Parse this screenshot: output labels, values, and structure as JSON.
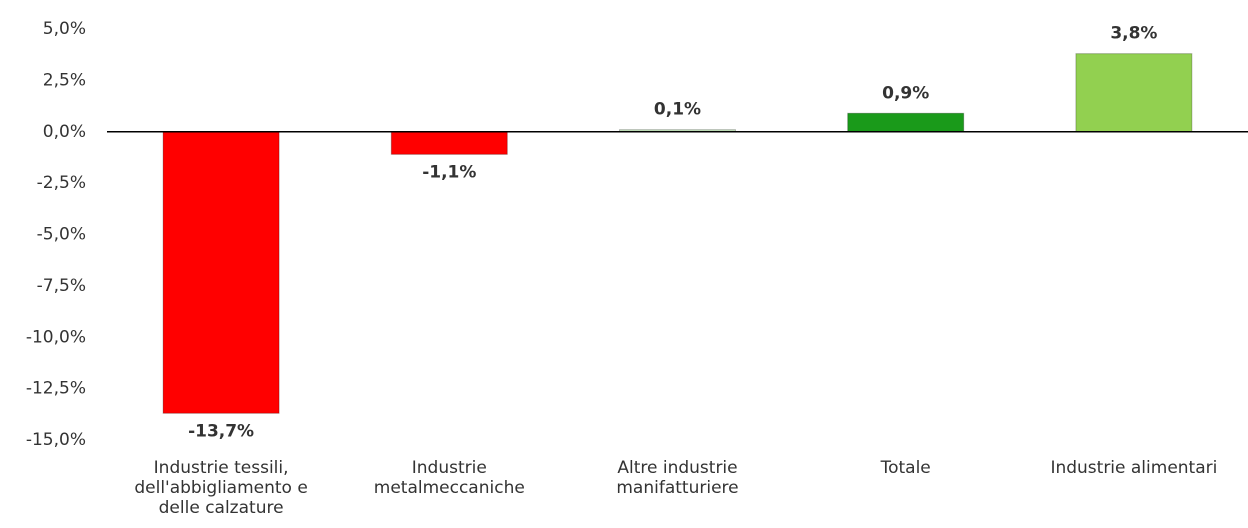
{
  "chart_data": {
    "type": "bar",
    "categories": [
      "Industrie tessili, dell'abbigliamento e delle calzature",
      "Industrie metalmeccaniche",
      "Altre industrie manifatturiere",
      "Totale",
      "Industrie alimentari"
    ],
    "values": [
      -13.7,
      -1.1,
      0.1,
      0.9,
      3.8
    ],
    "value_labels": [
      "-13,7%",
      "-1,1%",
      "0,1%",
      "0,9%",
      "3,8%"
    ],
    "colors": [
      "#ff0000",
      "#ff0000",
      "#c6e5bd",
      "#1a9a1a",
      "#92d050"
    ],
    "ylim": [
      -15,
      5
    ],
    "yticks": [
      {
        "value": 5,
        "label": "5,0%"
      },
      {
        "value": 2.5,
        "label": "2,5%"
      },
      {
        "value": 0,
        "label": "0,0%"
      },
      {
        "value": -2.5,
        "label": "-2,5%"
      },
      {
        "value": -5,
        "label": "-5,0%"
      },
      {
        "value": -7.5,
        "label": "-7,5%"
      },
      {
        "value": -10,
        "label": "-10,0%"
      },
      {
        "value": -12.5,
        "label": "-12,5%"
      },
      {
        "value": -15,
        "label": "-15,0%"
      }
    ],
    "grid": false
  }
}
